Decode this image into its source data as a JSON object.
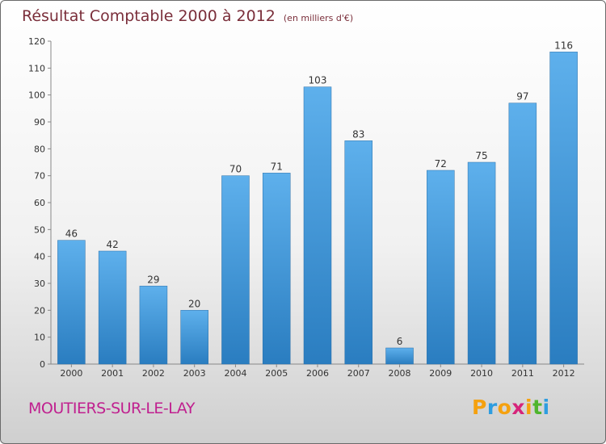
{
  "header": {
    "title": "Résultat Comptable 2000 à 2012",
    "subtitle": "(en milliers d'€)"
  },
  "footer": {
    "commune": "MOUTIERS-SUR-LE-LAY",
    "brand_letters": [
      "P",
      "r",
      "o",
      "x",
      "i",
      "t",
      "i"
    ],
    "brand_colors": [
      "#f5a10f",
      "#2e9de0",
      "#f5a10f",
      "#d6247a",
      "#f5a10f",
      "#4fb52e",
      "#2e9de0"
    ]
  },
  "colors": {
    "bar_light": "#5eb0ec",
    "bar_dark": "#2a7dc0",
    "axis_text": "#333333",
    "title": "#7a2e3a",
    "commune": "#c0208f"
  },
  "chart_data": {
    "type": "bar",
    "title": "Résultat Comptable 2000 à 2012",
    "subtitle": "(en milliers d'€)",
    "categories": [
      "2000",
      "2001",
      "2002",
      "2003",
      "2004",
      "2005",
      "2006",
      "2007",
      "2008",
      "2009",
      "2010",
      "2011",
      "2012"
    ],
    "values": [
      46,
      42,
      29,
      20,
      70,
      71,
      103,
      83,
      6,
      72,
      75,
      97,
      116
    ],
    "ylim": [
      0,
      120
    ],
    "yticks": [
      0,
      10,
      20,
      30,
      40,
      50,
      60,
      70,
      80,
      90,
      100,
      110,
      120
    ],
    "grid": false,
    "data_labels": true
  }
}
